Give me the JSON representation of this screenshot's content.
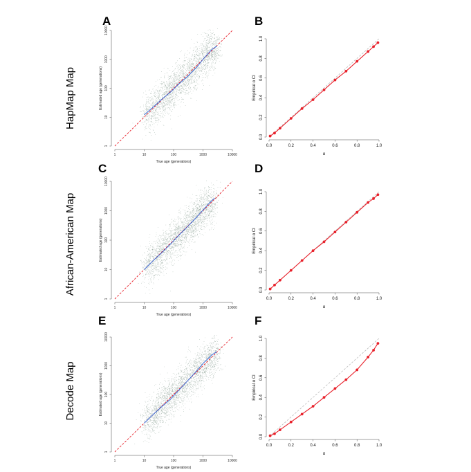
{
  "figure": {
    "rows": [
      {
        "label": "HapMap Map",
        "left_letter": "A",
        "right_letter": "B"
      },
      {
        "label": "African-American Map",
        "left_letter": "C",
        "right_letter": "D"
      },
      {
        "label": "Decode Map",
        "left_letter": "E",
        "right_letter": "F"
      }
    ]
  },
  "chart_data": [
    {
      "panel": "A",
      "type": "scatter",
      "xlabel": "True age (generations)",
      "ylabel": "Estimated age (generations)",
      "xscale": "log",
      "yscale": "log",
      "xlim": [
        1,
        10000
      ],
      "ylim": [
        1,
        10000
      ],
      "xticks": [
        1,
        10,
        100,
        1000,
        10000
      ],
      "xtick_labels": [
        "1",
        "10",
        "100",
        "1000",
        "10000"
      ],
      "yticks": [
        1,
        10,
        100,
        1000,
        10000
      ],
      "ytick_labels": [
        "1",
        "10",
        "100",
        "1000",
        "10000"
      ],
      "cloud": {
        "x_range": [
          10,
          3000
        ],
        "count": 2500,
        "color": "#3d5e4a"
      },
      "lines": [
        {
          "style": "dashed",
          "color": "#e8202a",
          "x": [
            1,
            10000
          ],
          "y": [
            1,
            10000
          ]
        },
        {
          "style": "solid",
          "color": "#3b6fd8",
          "x": [
            10,
            20,
            40,
            80,
            150,
            300,
            600,
            1000,
            1500,
            2000,
            3000
          ],
          "y": [
            12,
            22,
            42,
            75,
            140,
            260,
            520,
            1000,
            1600,
            2200,
            2900
          ]
        }
      ]
    },
    {
      "panel": "B",
      "type": "line",
      "xlabel": "α",
      "ylabel": "Empirical α CI",
      "xlim": [
        0,
        1
      ],
      "ylim": [
        0,
        1
      ],
      "xticks": [
        0.0,
        0.2,
        0.4,
        0.6,
        0.8,
        1.0
      ],
      "xtick_labels": [
        "0.0",
        "0.2",
        "0.4",
        "0.6",
        "0.8",
        "1.0"
      ],
      "yticks": [
        0.0,
        0.2,
        0.4,
        0.6,
        0.8,
        1.0
      ],
      "ytick_labels": [
        "0.0",
        "0.2",
        "0.4",
        "0.6",
        "0.8",
        "1.0"
      ],
      "reference": {
        "x": [
          0,
          1
        ],
        "y": [
          0,
          1
        ],
        "style": "dashed",
        "color": "#bbbbbb"
      },
      "series": [
        {
          "color": "#e8202a",
          "x": [
            0.01,
            0.05,
            0.1,
            0.2,
            0.3,
            0.4,
            0.5,
            0.6,
            0.7,
            0.8,
            0.9,
            0.95,
            0.99
          ],
          "y": [
            0.01,
            0.04,
            0.09,
            0.19,
            0.29,
            0.38,
            0.48,
            0.58,
            0.67,
            0.77,
            0.87,
            0.92,
            0.96
          ]
        }
      ]
    },
    {
      "panel": "C",
      "type": "scatter",
      "xlabel": "True age (generations)",
      "ylabel": "Estimated age (generations)",
      "xscale": "log",
      "yscale": "log",
      "xlim": [
        1,
        10000
      ],
      "ylim": [
        1,
        10000
      ],
      "xticks": [
        1,
        10,
        100,
        1000,
        10000
      ],
      "xtick_labels": [
        "1",
        "10",
        "100",
        "1000",
        "10000"
      ],
      "yticks": [
        1,
        10,
        100,
        1000,
        10000
      ],
      "ytick_labels": [
        "1",
        "10",
        "100",
        "1000",
        "10000"
      ],
      "cloud": {
        "x_range": [
          10,
          2500
        ],
        "count": 2500,
        "color": "#3d5e4a"
      },
      "lines": [
        {
          "style": "dashed",
          "color": "#e8202a",
          "x": [
            1,
            10000
          ],
          "y": [
            1,
            10000
          ]
        },
        {
          "style": "solid",
          "color": "#3b6fd8",
          "x": [
            10,
            20,
            40,
            80,
            150,
            300,
            600,
            1000,
            1500,
            2000,
            2500
          ],
          "y": [
            10,
            20,
            38,
            75,
            145,
            290,
            600,
            1050,
            1650,
            2200,
            2700
          ]
        }
      ]
    },
    {
      "panel": "D",
      "type": "line",
      "xlabel": "α",
      "ylabel": "Empirical α CI",
      "xlim": [
        0,
        1
      ],
      "ylim": [
        0,
        1
      ],
      "xticks": [
        0.0,
        0.2,
        0.4,
        0.6,
        0.8,
        1.0
      ],
      "xtick_labels": [
        "0.0",
        "0.2",
        "0.4",
        "0.6",
        "0.8",
        "1.0"
      ],
      "yticks": [
        0.0,
        0.2,
        0.4,
        0.6,
        0.8,
        1.0
      ],
      "ytick_labels": [
        "0.0",
        "0.2",
        "0.4",
        "0.6",
        "0.8",
        "1.0"
      ],
      "reference": {
        "x": [
          0,
          1
        ],
        "y": [
          0,
          1
        ],
        "style": "dashed",
        "color": "#bbbbbb"
      },
      "series": [
        {
          "color": "#e8202a",
          "x": [
            0.01,
            0.05,
            0.1,
            0.2,
            0.3,
            0.4,
            0.5,
            0.6,
            0.7,
            0.8,
            0.9,
            0.95,
            0.99
          ],
          "y": [
            0.01,
            0.05,
            0.1,
            0.2,
            0.3,
            0.4,
            0.49,
            0.59,
            0.69,
            0.79,
            0.89,
            0.93,
            0.97
          ]
        }
      ]
    },
    {
      "panel": "E",
      "type": "scatter",
      "xlabel": "True age (generations)",
      "ylabel": "Estimated age (generations)",
      "xscale": "log",
      "yscale": "log",
      "xlim": [
        1,
        10000
      ],
      "ylim": [
        1,
        10000
      ],
      "xticks": [
        1,
        10,
        100,
        1000,
        10000
      ],
      "xtick_labels": [
        "1",
        "10",
        "100",
        "1000",
        "10000"
      ],
      "yticks": [
        1,
        10,
        100,
        1000,
        10000
      ],
      "ytick_labels": [
        "1",
        "10",
        "100",
        "1000",
        "10000"
      ],
      "cloud": {
        "x_range": [
          10,
          3000
        ],
        "count": 2500,
        "color": "#3d5e4a"
      },
      "lines": [
        {
          "style": "dashed",
          "color": "#e8202a",
          "x": [
            1,
            10000
          ],
          "y": [
            1,
            10000
          ]
        },
        {
          "style": "solid",
          "color": "#3b6fd8",
          "x": [
            10,
            20,
            40,
            80,
            150,
            300,
            600,
            1000,
            1500,
            2000,
            3000
          ],
          "y": [
            10,
            20,
            38,
            70,
            140,
            300,
            650,
            1200,
            1800,
            2400,
            3100
          ]
        }
      ]
    },
    {
      "panel": "F",
      "type": "line",
      "xlabel": "α",
      "ylabel": "Empirical α CI",
      "xlim": [
        0,
        1
      ],
      "ylim": [
        0,
        1
      ],
      "xticks": [
        0.0,
        0.2,
        0.4,
        0.6,
        0.8,
        1.0
      ],
      "xtick_labels": [
        "0.0",
        "0.2",
        "0.4",
        "0.6",
        "0.8",
        "1.0"
      ],
      "yticks": [
        0.0,
        0.2,
        0.4,
        0.6,
        0.8,
        1.0
      ],
      "ytick_labels": [
        "0.0",
        "0.2",
        "0.4",
        "0.6",
        "0.8",
        "1.0"
      ],
      "reference": {
        "x": [
          0,
          1
        ],
        "y": [
          0,
          1
        ],
        "style": "dashed",
        "color": "#bbbbbb"
      },
      "series": [
        {
          "color": "#e8202a",
          "x": [
            0.01,
            0.05,
            0.1,
            0.2,
            0.3,
            0.4,
            0.5,
            0.6,
            0.7,
            0.8,
            0.9,
            0.95,
            0.99
          ],
          "y": [
            0.01,
            0.03,
            0.07,
            0.15,
            0.23,
            0.31,
            0.4,
            0.49,
            0.58,
            0.68,
            0.81,
            0.88,
            0.95
          ]
        }
      ]
    }
  ]
}
